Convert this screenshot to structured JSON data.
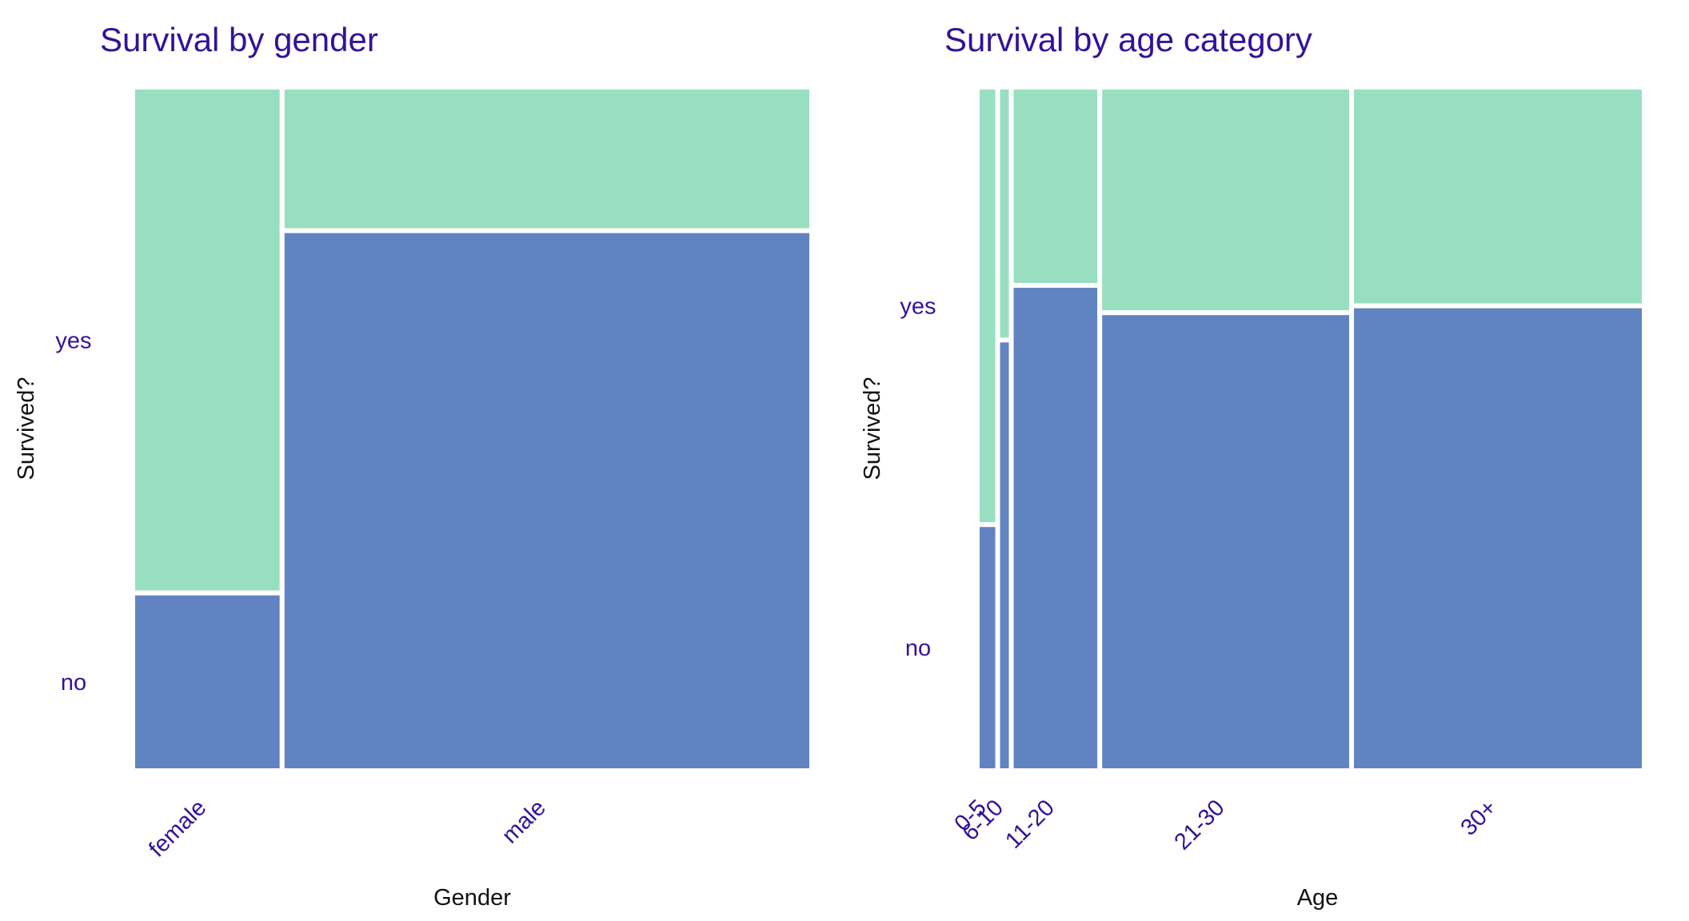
{
  "colors": {
    "yes": "#98dfc1",
    "no": "#6183c2",
    "text_accent": "#33129a",
    "text_axis": "#111111"
  },
  "chart_data": [
    {
      "type": "mosaic",
      "title": "Survival by gender",
      "xlabel": "Gender",
      "ylabel": "Survived?",
      "y_levels": [
        "no",
        "yes"
      ],
      "categories": [
        "female",
        "male"
      ],
      "category_share": [
        0.22,
        0.78
      ],
      "no_fraction": [
        0.26,
        0.79
      ],
      "yes_fraction": [
        0.74,
        0.21
      ]
    },
    {
      "type": "mosaic",
      "title": "Survival by age category",
      "xlabel": "Age",
      "ylabel": "Survived?",
      "y_levels": [
        "no",
        "yes"
      ],
      "categories": [
        "0-5",
        "6-10",
        "11-20",
        "21-30",
        "30+"
      ],
      "category_share": [
        0.03,
        0.02,
        0.13,
        0.37,
        0.43
      ],
      "no_fraction": [
        0.36,
        0.63,
        0.71,
        0.67,
        0.68
      ],
      "yes_fraction": [
        0.64,
        0.37,
        0.29,
        0.33,
        0.32
      ]
    }
  ]
}
